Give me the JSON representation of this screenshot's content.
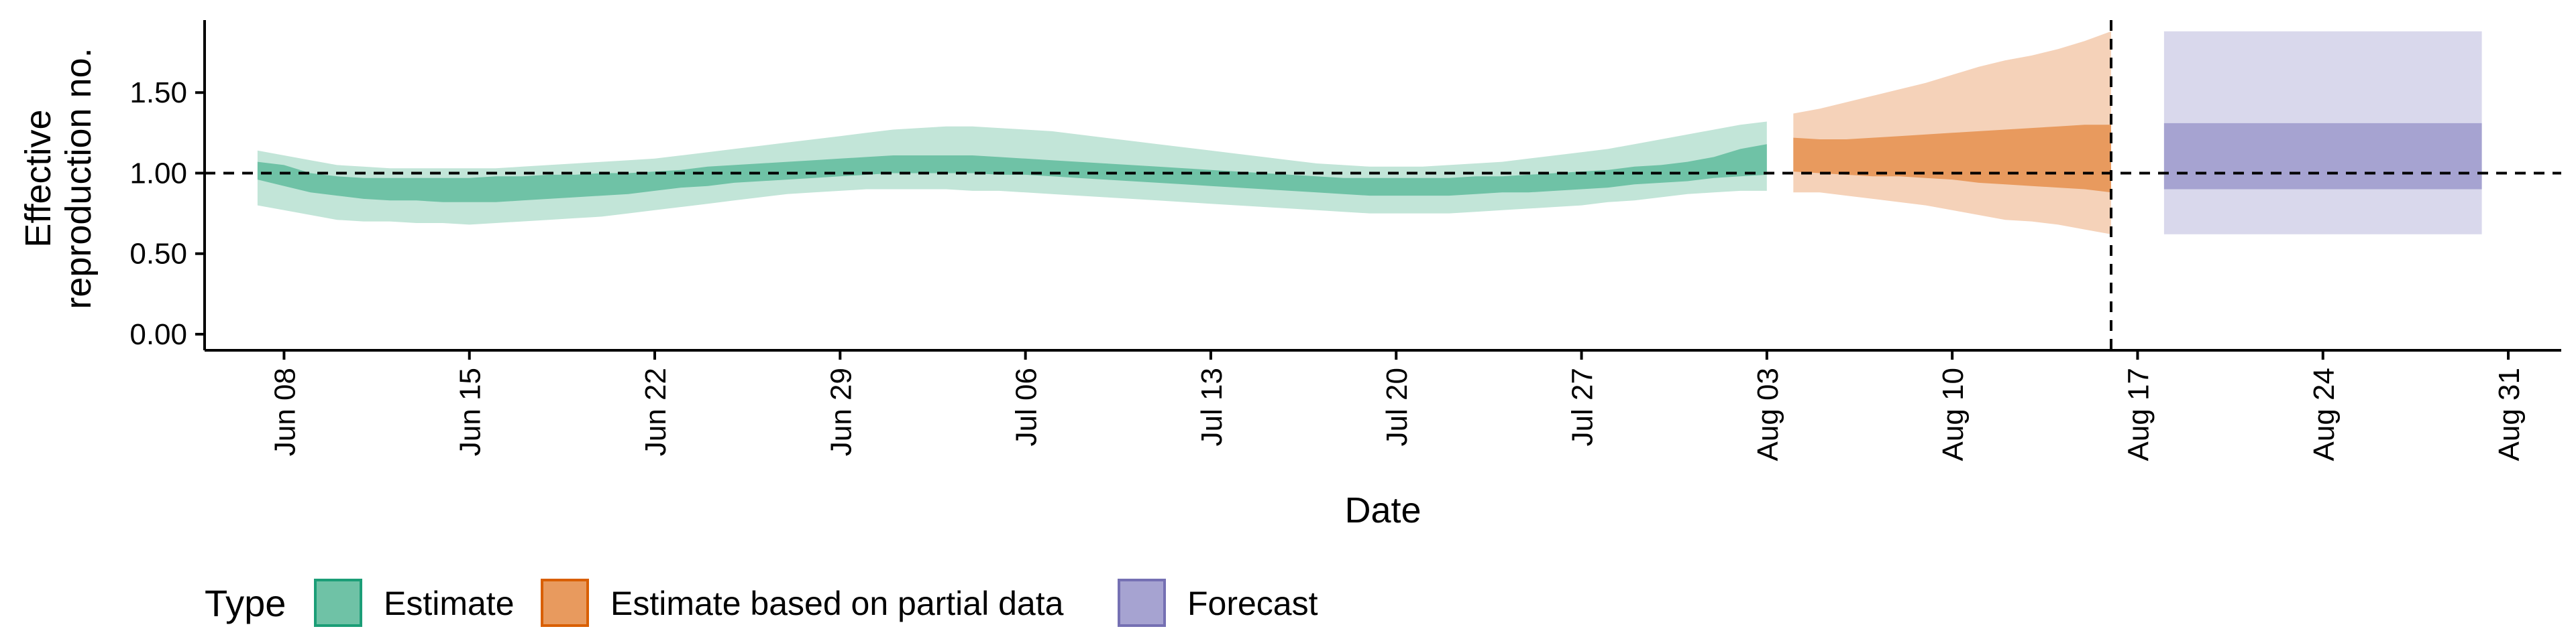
{
  "chart_data": {
    "type": "area",
    "xlabel": "Date",
    "ylabel": [
      "Effective",
      "reproduction no."
    ],
    "x_axis": {
      "type": "date",
      "range": [
        "2020-06-05",
        "2020-09-02"
      ],
      "ticks": [
        {
          "date": "2020-06-08",
          "label": "Jun 08"
        },
        {
          "date": "2020-06-15",
          "label": "Jun 15"
        },
        {
          "date": "2020-06-22",
          "label": "Jun 22"
        },
        {
          "date": "2020-06-29",
          "label": "Jun 29"
        },
        {
          "date": "2020-07-06",
          "label": "Jul 06"
        },
        {
          "date": "2020-07-13",
          "label": "Jul 13"
        },
        {
          "date": "2020-07-20",
          "label": "Jul 20"
        },
        {
          "date": "2020-07-27",
          "label": "Jul 27"
        },
        {
          "date": "2020-08-03",
          "label": "Aug 03"
        },
        {
          "date": "2020-08-10",
          "label": "Aug 10"
        },
        {
          "date": "2020-08-17",
          "label": "Aug 17"
        },
        {
          "date": "2020-08-24",
          "label": "Aug 24"
        },
        {
          "date": "2020-08-31",
          "label": "Aug 31"
        }
      ]
    },
    "y_axis": {
      "range": [
        -0.1,
        1.95
      ],
      "ticks": [
        {
          "value": 0,
          "label": "0.00"
        },
        {
          "value": 0.5,
          "label": "0.50"
        },
        {
          "value": 1,
          "label": "1.00"
        },
        {
          "value": 1.5,
          "label": "1.50"
        }
      ]
    },
    "reference_line": {
      "y": 1.0,
      "style": "dashed"
    },
    "forecast_start_line": {
      "date": "2020-08-16",
      "style": "dashed"
    },
    "grid": false,
    "legend": {
      "title": "Type",
      "position": "bottom-left",
      "entries": [
        {
          "label": "Estimate",
          "fill": "#6fc2a6",
          "stroke": "#1b9e77"
        },
        {
          "label": "Estimate based on partial data",
          "fill": "#e89a5e",
          "stroke": "#d95f02"
        },
        {
          "label": "Forecast",
          "fill": "#a6a3d1",
          "stroke": "#7570b3"
        }
      ]
    },
    "series": [
      {
        "type_ref": "Estimate",
        "colors": {
          "outer": "#c2e5d8",
          "inner": "#6fc2a6"
        },
        "dates": [
          "2020-06-07",
          "2020-06-08",
          "2020-06-09",
          "2020-06-10",
          "2020-06-11",
          "2020-06-12",
          "2020-06-13",
          "2020-06-14",
          "2020-06-15",
          "2020-06-16",
          "2020-06-17",
          "2020-06-18",
          "2020-06-19",
          "2020-06-20",
          "2020-06-21",
          "2020-06-22",
          "2020-06-23",
          "2020-06-24",
          "2020-06-25",
          "2020-06-26",
          "2020-06-27",
          "2020-06-28",
          "2020-06-29",
          "2020-06-30",
          "2020-07-01",
          "2020-07-02",
          "2020-07-03",
          "2020-07-04",
          "2020-07-05",
          "2020-07-06",
          "2020-07-07",
          "2020-07-08",
          "2020-07-09",
          "2020-07-10",
          "2020-07-11",
          "2020-07-12",
          "2020-07-13",
          "2020-07-14",
          "2020-07-15",
          "2020-07-16",
          "2020-07-17",
          "2020-07-18",
          "2020-07-19",
          "2020-07-20",
          "2020-07-21",
          "2020-07-22",
          "2020-07-23",
          "2020-07-24",
          "2020-07-25",
          "2020-07-26",
          "2020-07-27",
          "2020-07-28",
          "2020-07-29",
          "2020-07-30",
          "2020-07-31",
          "2020-08-01",
          "2020-08-02",
          "2020-08-03"
        ],
        "lower_90": [
          0.8,
          0.77,
          0.74,
          0.71,
          0.7,
          0.7,
          0.69,
          0.69,
          0.68,
          0.69,
          0.7,
          0.71,
          0.72,
          0.73,
          0.75,
          0.77,
          0.79,
          0.81,
          0.83,
          0.85,
          0.87,
          0.88,
          0.89,
          0.9,
          0.9,
          0.9,
          0.9,
          0.89,
          0.89,
          0.88,
          0.87,
          0.86,
          0.85,
          0.84,
          0.83,
          0.82,
          0.81,
          0.8,
          0.79,
          0.78,
          0.77,
          0.76,
          0.75,
          0.75,
          0.75,
          0.75,
          0.76,
          0.77,
          0.78,
          0.79,
          0.8,
          0.82,
          0.83,
          0.85,
          0.87,
          0.88,
          0.89,
          0.89
        ],
        "lower_50": [
          0.96,
          0.92,
          0.88,
          0.86,
          0.84,
          0.83,
          0.83,
          0.82,
          0.82,
          0.82,
          0.83,
          0.84,
          0.85,
          0.86,
          0.87,
          0.89,
          0.91,
          0.92,
          0.94,
          0.95,
          0.96,
          0.97,
          0.98,
          0.99,
          1.0,
          1.0,
          1.0,
          1.0,
          0.99,
          0.99,
          0.98,
          0.97,
          0.96,
          0.95,
          0.94,
          0.93,
          0.92,
          0.91,
          0.9,
          0.89,
          0.88,
          0.87,
          0.86,
          0.86,
          0.86,
          0.86,
          0.87,
          0.88,
          0.88,
          0.89,
          0.9,
          0.91,
          0.93,
          0.94,
          0.95,
          0.97,
          0.98,
          0.99
        ],
        "upper_50": [
          1.07,
          1.05,
          1.0,
          0.98,
          0.97,
          0.97,
          0.97,
          0.97,
          0.97,
          0.98,
          0.98,
          0.99,
          0.99,
          1.0,
          1.0,
          1.01,
          1.02,
          1.04,
          1.05,
          1.06,
          1.07,
          1.08,
          1.09,
          1.1,
          1.11,
          1.11,
          1.11,
          1.11,
          1.1,
          1.09,
          1.08,
          1.07,
          1.06,
          1.05,
          1.04,
          1.03,
          1.02,
          1.01,
          1.0,
          0.99,
          0.98,
          0.97,
          0.97,
          0.97,
          0.97,
          0.97,
          0.98,
          0.98,
          0.99,
          1.0,
          1.01,
          1.02,
          1.04,
          1.05,
          1.07,
          1.1,
          1.15,
          1.18
        ],
        "upper_90": [
          1.14,
          1.11,
          1.08,
          1.05,
          1.04,
          1.03,
          1.03,
          1.03,
          1.03,
          1.03,
          1.04,
          1.05,
          1.06,
          1.07,
          1.08,
          1.09,
          1.11,
          1.13,
          1.15,
          1.17,
          1.19,
          1.21,
          1.23,
          1.25,
          1.27,
          1.28,
          1.29,
          1.29,
          1.28,
          1.27,
          1.26,
          1.24,
          1.22,
          1.2,
          1.18,
          1.16,
          1.14,
          1.12,
          1.1,
          1.08,
          1.06,
          1.05,
          1.04,
          1.04,
          1.04,
          1.05,
          1.06,
          1.07,
          1.09,
          1.11,
          1.13,
          1.15,
          1.18,
          1.21,
          1.24,
          1.27,
          1.3,
          1.32
        ]
      },
      {
        "type_ref": "Estimate based on partial data",
        "colors": {
          "outer": "#f5d2b9",
          "inner": "#e89a5e"
        },
        "dates": [
          "2020-08-04",
          "2020-08-05",
          "2020-08-06",
          "2020-08-07",
          "2020-08-08",
          "2020-08-09",
          "2020-08-10",
          "2020-08-11",
          "2020-08-12",
          "2020-08-13",
          "2020-08-14",
          "2020-08-15",
          "2020-08-16"
        ],
        "lower_90": [
          0.88,
          0.88,
          0.86,
          0.84,
          0.82,
          0.8,
          0.77,
          0.74,
          0.71,
          0.7,
          0.68,
          0.65,
          0.62
        ],
        "lower_50": [
          1.01,
          1.0,
          0.99,
          0.98,
          0.98,
          0.97,
          0.96,
          0.94,
          0.93,
          0.92,
          0.91,
          0.9,
          0.88
        ],
        "upper_50": [
          1.22,
          1.21,
          1.21,
          1.22,
          1.23,
          1.24,
          1.25,
          1.26,
          1.27,
          1.28,
          1.29,
          1.3,
          1.3
        ],
        "upper_90": [
          1.37,
          1.4,
          1.44,
          1.48,
          1.52,
          1.56,
          1.61,
          1.66,
          1.7,
          1.73,
          1.77,
          1.82,
          1.88
        ]
      },
      {
        "type_ref": "Forecast",
        "colors": {
          "outer": "#d9d8ec",
          "inner": "#a6a3d1"
        },
        "dates": [
          "2020-08-18",
          "2020-08-30"
        ],
        "lower_90": [
          0.62,
          0.62
        ],
        "lower_50": [
          0.9,
          0.9
        ],
        "upper_50": [
          1.31,
          1.31
        ],
        "upper_90": [
          1.88,
          1.88
        ]
      }
    ]
  }
}
